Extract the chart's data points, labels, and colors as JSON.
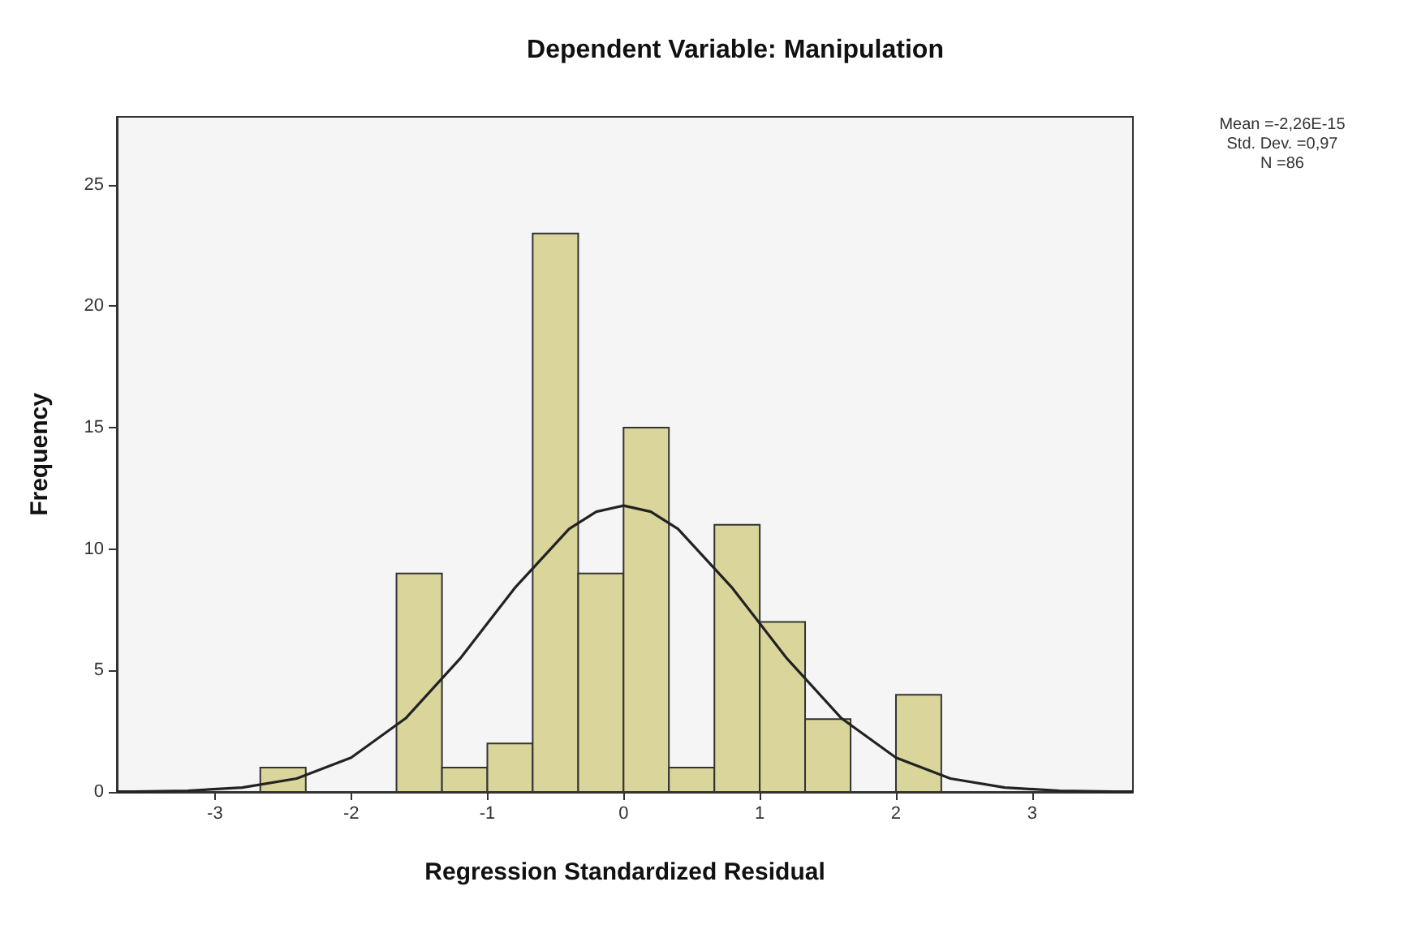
{
  "chart_data": {
    "type": "histogram",
    "title": "Dependent Variable: Manipulation",
    "xlabel": "Regression Standardized Residual",
    "ylabel": "Frequency",
    "bins": [
      -2.667,
      -2.333,
      -2,
      -1.667,
      -1.333,
      -1,
      -0.667,
      -0.333,
      0,
      0.333,
      0.667,
      1,
      1.333,
      1.667,
      2,
      2.333
    ],
    "series": [
      {
        "color": "#d9d59b",
        "values": [
          1,
          0,
          0,
          9,
          1,
          2,
          23,
          9,
          15,
          1,
          11,
          7,
          3,
          0,
          4
        ]
      },
      {
        "type": "line",
        "color": "#222222",
        "x": [
          -3.72,
          -3.6,
          -3.2,
          -2.8,
          -2.4,
          -2,
          -1.6,
          -1.2,
          -0.8,
          -0.4,
          -0.2,
          0,
          0.2,
          0.4,
          0.8,
          1.2,
          1.6,
          2,
          2.4,
          2.8,
          3.2,
          3.6,
          3.74
        ],
        "values": [
          0.01,
          0.01,
          0.05,
          0.18,
          0.55,
          1.41,
          3.03,
          5.49,
          8.39,
          10.83,
          11.54,
          11.79,
          11.54,
          10.83,
          8.39,
          5.49,
          3.03,
          1.41,
          0.55,
          0.18,
          0.05,
          0.01,
          0.01
        ]
      }
    ],
    "xlim": [
      -3.72,
      3.74
    ],
    "xticks": [
      -3,
      -2,
      -1,
      0,
      1,
      2,
      3
    ],
    "ylim": [
      0,
      27.8
    ],
    "yticks": [
      0,
      5,
      10,
      15,
      20,
      25
    ],
    "annotations": [
      "Mean =-2,26E-15",
      "Std. Dev. =0,97",
      "N =86"
    ]
  }
}
